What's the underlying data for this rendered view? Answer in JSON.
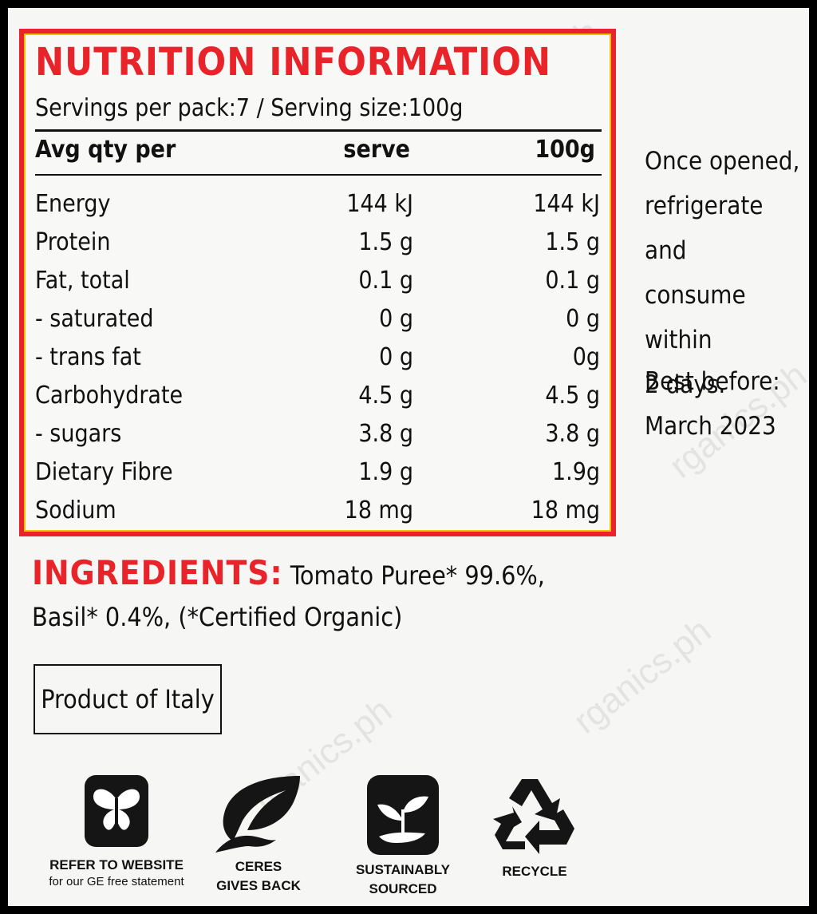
{
  "nutrition": {
    "title": "NUTRITION INFORMATION",
    "serving_line": "Servings per pack:7 / Serving size:100g",
    "header": {
      "label": "Avg qty per",
      "col_serve": "serve",
      "col_100g": "100g"
    },
    "rows": [
      {
        "label": "Energy",
        "serve": "144 kJ",
        "per100g": "144 kJ"
      },
      {
        "label": "Protein",
        "serve": "1.5 g",
        "per100g": "1.5 g"
      },
      {
        "label": "Fat, total",
        "serve": "0.1 g",
        "per100g": "0.1 g"
      },
      {
        "label": "- saturated",
        "serve": "0 g",
        "per100g": "0 g"
      },
      {
        "label": "- trans fat",
        "serve": "0 g",
        "per100g": "0g"
      },
      {
        "label": "Carbohydrate",
        "serve": "4.5 g",
        "per100g": "4.5 g"
      },
      {
        "label": "- sugars",
        "serve": "3.8 g",
        "per100g": "3.8 g"
      },
      {
        "label": "Dietary Fibre",
        "serve": "1.9 g",
        "per100g": "1.9g"
      },
      {
        "label": "Sodium",
        "serve": "18 mg",
        "per100g": "18 mg"
      }
    ],
    "accent_color": "#e8232a"
  },
  "storage": {
    "line1": "Once opened,",
    "line2": "refrigerate and",
    "line3": "consume within",
    "line4": "2 days."
  },
  "best_before": {
    "label": "Best before:",
    "date": "March 2023"
  },
  "ingredients": {
    "title": "INGREDIENTS:",
    "text_line1": "Tomato Puree* 99.6%,",
    "text_line2": "Basil* 0.4%, (*Certified Organic)"
  },
  "origin": "Product of Italy",
  "badges": [
    {
      "icon": "butterfly-icon",
      "line1": "REFER TO WEBSITE",
      "line2": "for our GE free statement"
    },
    {
      "icon": "leaf-hand-icon",
      "line1": "CERES",
      "line2": "GIVES BACK"
    },
    {
      "icon": "seedling-icon",
      "line1": "SUSTAINABLY",
      "line2": "SOURCED"
    },
    {
      "icon": "recycle-icon",
      "line1": "RECYCLE"
    }
  ],
  "watermark": "rganics.ph"
}
